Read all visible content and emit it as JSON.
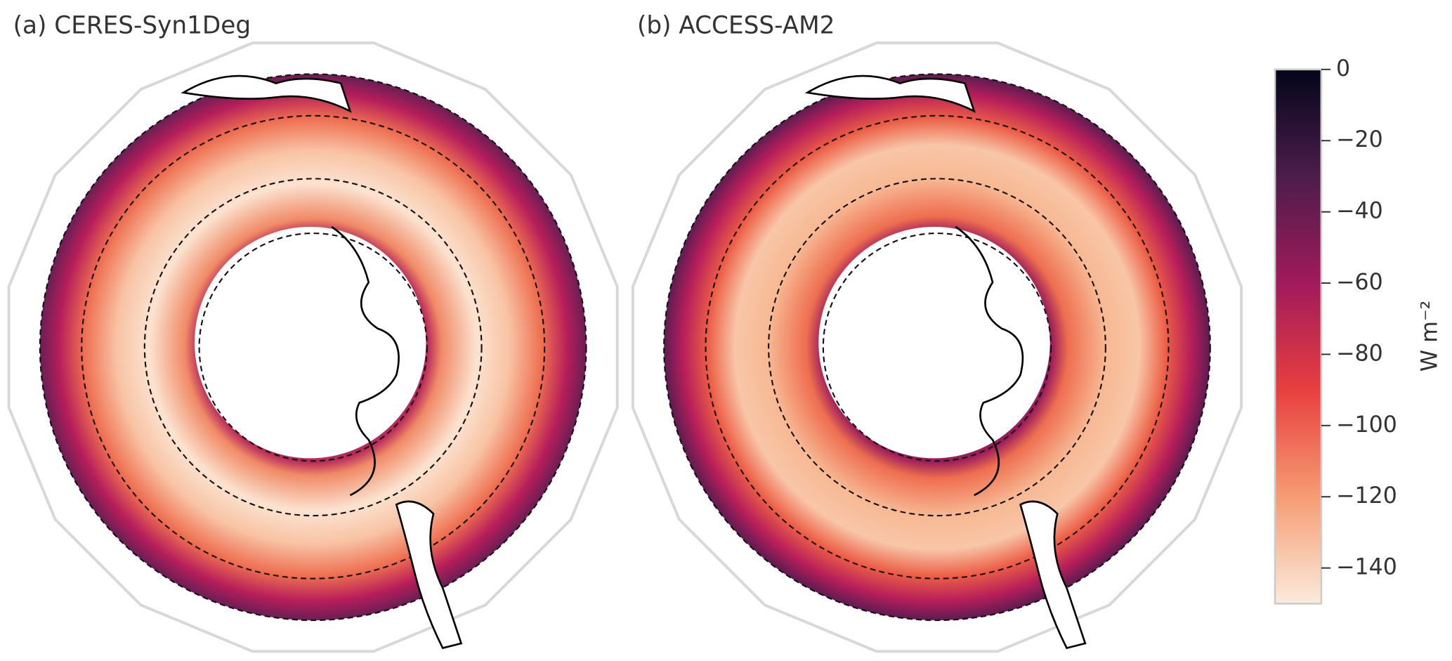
{
  "panels": [
    {
      "title": "(a) CERES-Syn1Deg"
    },
    {
      "title": "(b) ACCESS-AM2"
    }
  ],
  "colorbar": {
    "label": "W m⁻²",
    "lim": [
      -150,
      0
    ],
    "ticks": [
      0,
      {
        "value": -20,
        "label": "−20"
      },
      {
        "value": -40,
        "label": "−40"
      },
      {
        "value": -60,
        "label": "−60"
      },
      {
        "value": -80,
        "label": "−80"
      },
      {
        "value": -100,
        "label": "−100"
      },
      {
        "value": -120,
        "label": "−120"
      },
      {
        "value": -140,
        "label": "−140"
      }
    ]
  }
}
